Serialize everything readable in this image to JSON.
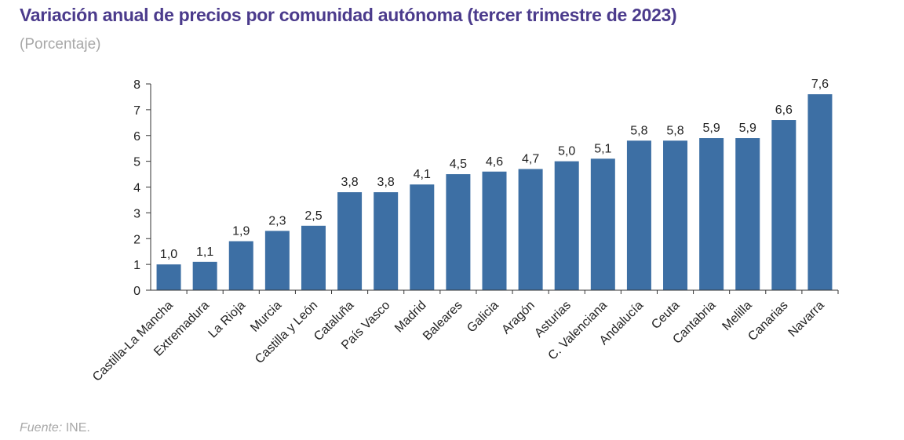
{
  "header": {
    "title": "Variación anual de precios por comunidad autónoma (tercer trimestre de 2023)",
    "subtitle": "(Porcentaje)"
  },
  "footer": {
    "source_label": "Fuente:",
    "source_value": "INE."
  },
  "colors": {
    "bar": "#3d6fa4",
    "title": "#4b3b8c",
    "axis": "#333333"
  },
  "chart_data": {
    "type": "bar",
    "title": "Variación anual de precios por comunidad autónoma (tercer trimestre de 2023)",
    "subtitle": "(Porcentaje)",
    "xlabel": "",
    "ylabel": "",
    "ylim": [
      0,
      8
    ],
    "yticks": [
      "0",
      "1",
      "2",
      "3",
      "4",
      "5",
      "6",
      "7",
      "8"
    ],
    "grid": false,
    "legend": "none",
    "categories": [
      "Castilla-La Mancha",
      "Extremadura",
      "La Rioja",
      "Murcia",
      "Castilla y León",
      "Cataluña",
      "País Vasco",
      "Madrid",
      "Baleares",
      "Galicia",
      "Aragón",
      "Asturias",
      "C. Valenciana",
      "Andalucía",
      "Ceuta",
      "Cantabria",
      "Melilla",
      "Canarias",
      "Navarra"
    ],
    "values": [
      1.0,
      1.1,
      1.9,
      2.3,
      2.5,
      3.8,
      3.8,
      4.1,
      4.5,
      4.6,
      4.7,
      5.0,
      5.1,
      5.8,
      5.8,
      5.9,
      5.9,
      6.6,
      7.6
    ],
    "data_labels": [
      "1,0",
      "1,1",
      "1,9",
      "2,3",
      "2,5",
      "3,8",
      "3,8",
      "4,1",
      "4,5",
      "4,6",
      "4,7",
      "5,0",
      "5,1",
      "5,8",
      "5,8",
      "5,9",
      "5,9",
      "6,6",
      "7,6"
    ]
  }
}
